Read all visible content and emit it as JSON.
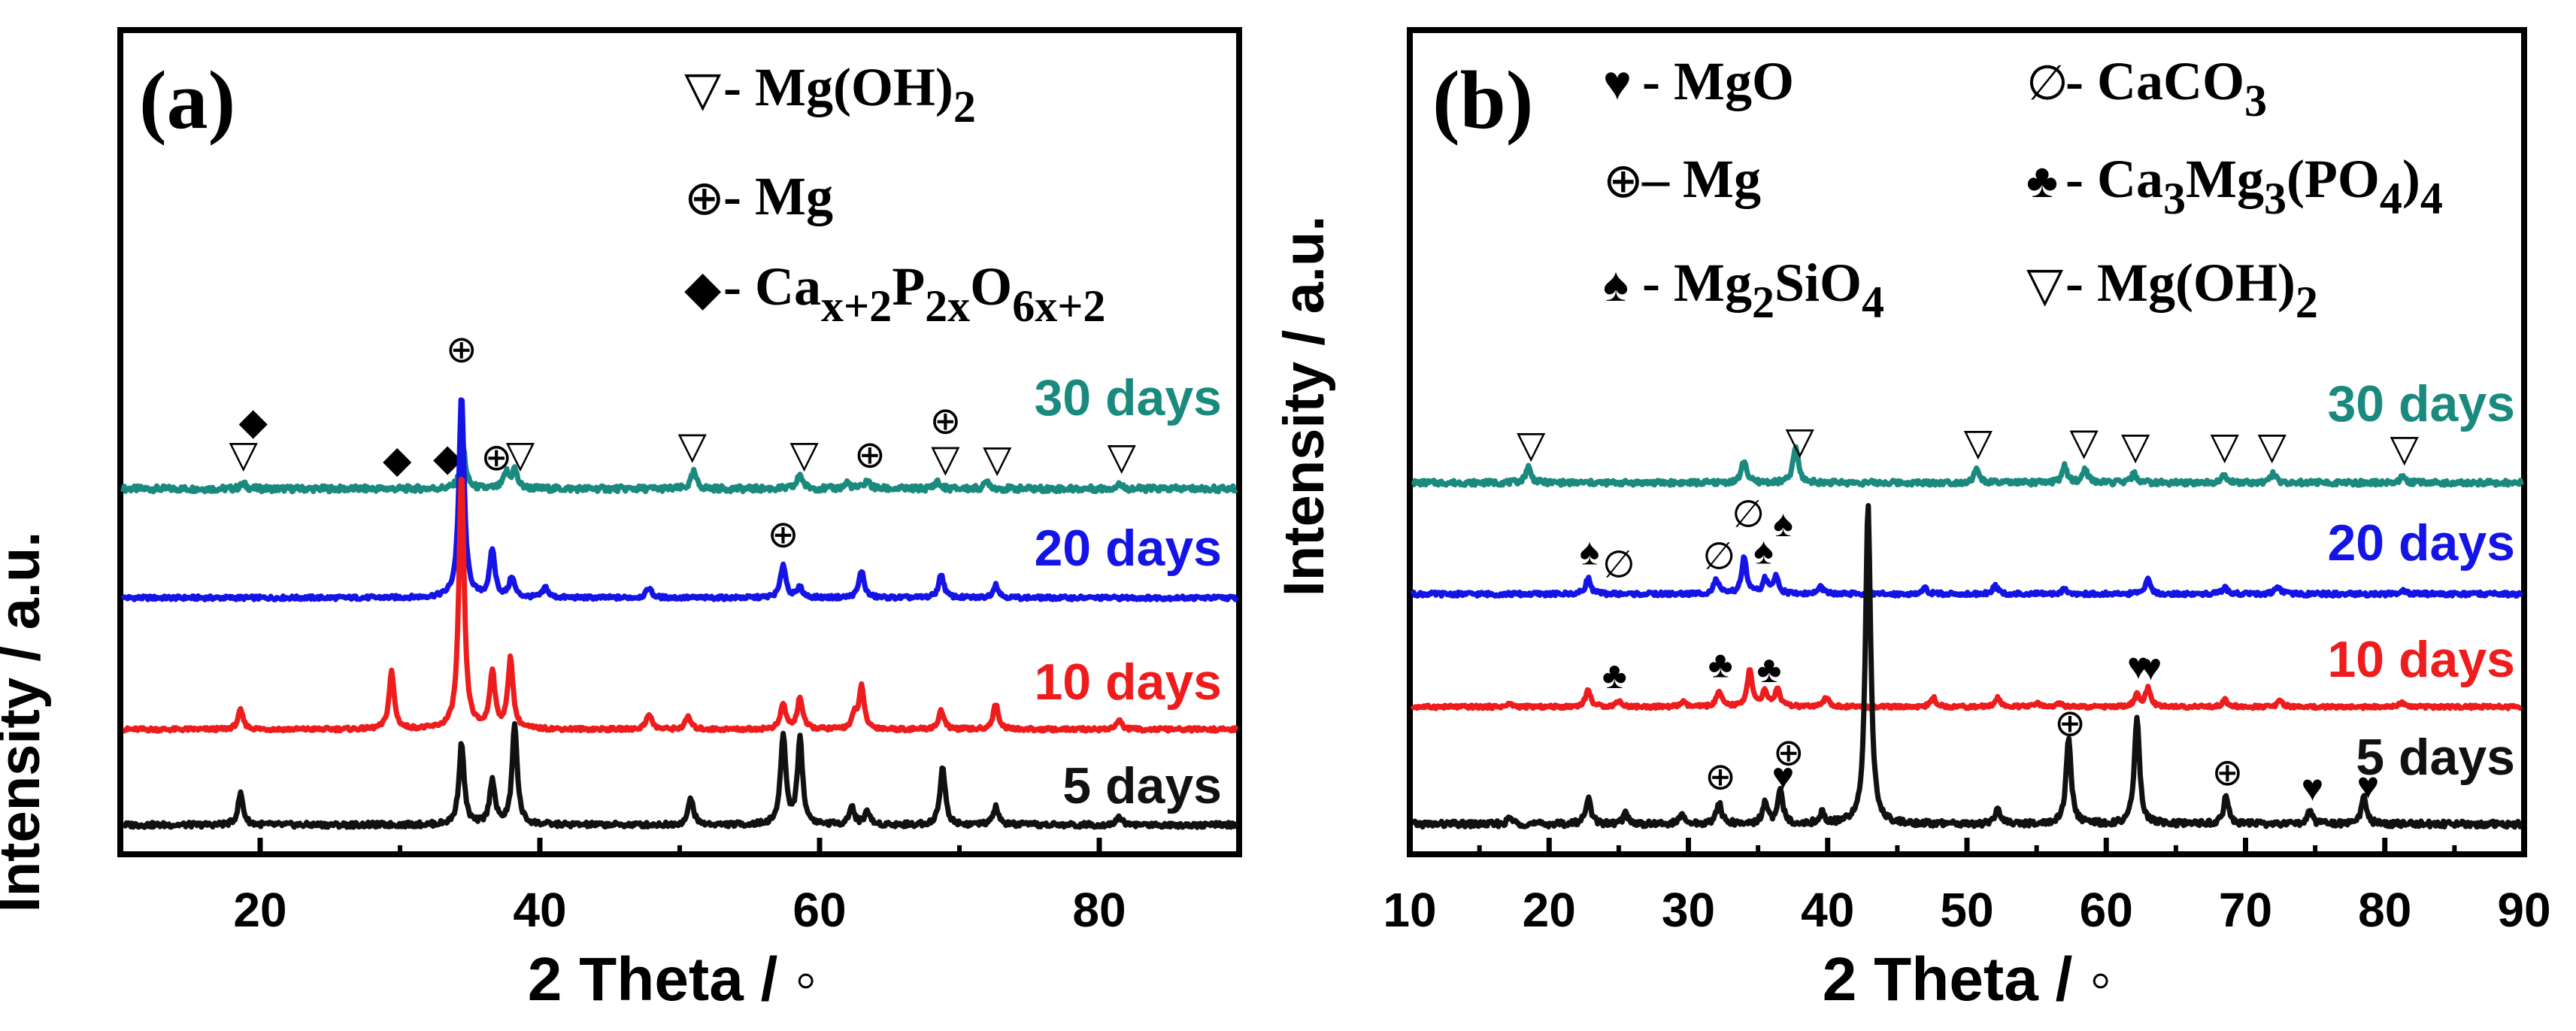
{
  "chart_data": [
    {
      "panel_label": "(a)",
      "type": "line",
      "xlabel": "2 Theta / ◦",
      "ylabel": "Intensity / a.u.",
      "xlim": [
        10,
        90
      ],
      "x_tick_labels": [
        "20",
        "40",
        "60",
        "80"
      ],
      "legend": [
        {
          "symbol": "▽",
          "phase": "Mg(OH)",
          "sub": "2"
        },
        {
          "symbol": "⊕",
          "phase": "Mg",
          "sub": ""
        },
        {
          "symbol": "◆",
          "phase": "Ca",
          "formula": [
            "Ca",
            "x+2",
            "P",
            "2x",
            "O",
            "6x+2"
          ]
        }
      ],
      "series": [
        {
          "name": "30 days",
          "color": "#1a8a7e",
          "peaks": [
            [
              18.8,
              0.5
            ],
            [
              34.5,
              4.0
            ],
            [
              37.6,
              1.5
            ],
            [
              38.2,
              1.8
            ],
            [
              51.0,
              1.6
            ],
            [
              58.6,
              1.4
            ],
            [
              62.0,
              0.6
            ],
            [
              63.4,
              0.8
            ],
            [
              68.4,
              0.7
            ],
            [
              72.0,
              0.7
            ],
            [
              81.4,
              0.5
            ]
          ],
          "markers": [
            {
              "x": 18.8,
              "symbol": "▽"
            },
            {
              "x": 19.5,
              "symbol": "◆",
              "stack": 2
            },
            {
              "x": 29.8,
              "symbol": "◆"
            },
            {
              "x": 33.4,
              "symbol": "◆"
            },
            {
              "x": 34.4,
              "symbol": "⊕",
              "stack": 3
            },
            {
              "x": 36.9,
              "symbol": "⊕"
            },
            {
              "x": 38.6,
              "symbol": "▽"
            },
            {
              "x": 50.9,
              "symbol": "▽"
            },
            {
              "x": 58.9,
              "symbol": "▽"
            },
            {
              "x": 63.6,
              "symbol": "⊕"
            },
            {
              "x": 69.0,
              "symbol": "▽"
            },
            {
              "x": 69.0,
              "symbol": "⊕",
              "stack": 2
            },
            {
              "x": 72.7,
              "symbol": "▽"
            },
            {
              "x": 81.6,
              "symbol": "▽"
            }
          ]
        },
        {
          "name": "20 days",
          "color": "#1414e6",
          "peaks": [
            [
              34.4,
              30.0
            ],
            [
              36.6,
              7.0
            ],
            [
              38.0,
              3.0
            ],
            [
              40.4,
              1.5
            ],
            [
              47.8,
              1.5
            ],
            [
              57.4,
              5.0
            ],
            [
              58.6,
              1.5
            ],
            [
              63.0,
              4.0
            ],
            [
              68.7,
              3.5
            ],
            [
              72.6,
              2.0
            ]
          ],
          "markers": [
            {
              "x": 57.4,
              "symbol": "⊕"
            }
          ]
        },
        {
          "name": "10 days",
          "color": "#ee1c1c",
          "peaks": [
            [
              18.6,
              3.0
            ],
            [
              29.4,
              9.0
            ],
            [
              34.4,
              40.0
            ],
            [
              36.6,
              9.0
            ],
            [
              37.9,
              11.0
            ],
            [
              47.8,
              2.5
            ],
            [
              50.6,
              2.0
            ],
            [
              57.4,
              4.0
            ],
            [
              58.6,
              5.0
            ],
            [
              62.5,
              2.0
            ],
            [
              63.0,
              6.5
            ],
            [
              68.7,
              3.0
            ],
            [
              72.6,
              4.0
            ],
            [
              81.4,
              1.5
            ]
          ],
          "markers": []
        },
        {
          "name": "5 days",
          "color": "#111111",
          "peaks": [
            [
              18.6,
              3.5
            ],
            [
              34.4,
              9.0
            ],
            [
              36.6,
              5.0
            ],
            [
              38.2,
              11.0
            ],
            [
              50.8,
              3.0
            ],
            [
              57.4,
              10.0
            ],
            [
              58.6,
              9.5
            ],
            [
              62.3,
              2.0
            ],
            [
              63.4,
              1.5
            ],
            [
              68.8,
              6.5
            ],
            [
              72.6,
              2.0
            ],
            [
              81.4,
              1.0
            ]
          ],
          "markers": []
        }
      ]
    },
    {
      "panel_label": "(b)",
      "type": "line",
      "xlabel": "2 Theta / ◦",
      "ylabel": "Intensity / a.u.",
      "xlim": [
        10,
        90
      ],
      "x_tick_labels": [
        "10",
        "20",
        "30",
        "40",
        "50",
        "60",
        "70",
        "80",
        "90"
      ],
      "legend": [
        {
          "symbol": "♥",
          "phase": "MgO",
          "formula": [
            "MgO"
          ]
        },
        {
          "symbol": "∅",
          "phase": "CaCO3",
          "formula": [
            "CaCO",
            "3"
          ]
        },
        {
          "symbol": "⊕",
          "phase": "Mg",
          "formula": [
            "Mg"
          ],
          "dash": "–"
        },
        {
          "symbol": "♣",
          "phase": "Ca3Mg3(PO4)4",
          "formula": [
            "Ca",
            "3",
            "Mg",
            "3",
            "(PO",
            "4",
            ")",
            "4"
          ]
        },
        {
          "symbol": "♠",
          "phase": "Mg2SiO4",
          "formula": [
            "Mg",
            "2",
            "SiO",
            "4"
          ]
        },
        {
          "symbol": "▽",
          "phase": "Mg(OH)2",
          "formula": [
            "Mg(OH)",
            "2"
          ]
        }
      ],
      "series": [
        {
          "name": "30 days",
          "color": "#1a8a7e",
          "peaks": [
            [
              18.5,
              1.8
            ],
            [
              34.0,
              2.5
            ],
            [
              37.7,
              4.0
            ],
            [
              50.7,
              1.5
            ],
            [
              57.0,
              1.8
            ],
            [
              58.5,
              1.5
            ],
            [
              62.0,
              1.0
            ],
            [
              68.4,
              1.0
            ],
            [
              72.0,
              1.0
            ],
            [
              81.3,
              0.7
            ]
          ],
          "markers": [
            {
              "x": 18.7,
              "symbol": "▽"
            },
            {
              "x": 38.0,
              "symbol": "▽"
            },
            {
              "x": 50.8,
              "symbol": "▽"
            },
            {
              "x": 58.4,
              "symbol": "▽"
            },
            {
              "x": 62.1,
              "symbol": "▽"
            },
            {
              "x": 68.5,
              "symbol": "▽"
            },
            {
              "x": 71.9,
              "symbol": "▽"
            },
            {
              "x": 81.4,
              "symbol": "▽"
            }
          ]
        },
        {
          "name": "20 days",
          "color": "#1414e6",
          "peaks": [
            [
              22.8,
              2.2
            ],
            [
              32.0,
              2.0
            ],
            [
              34.0,
              5.0
            ],
            [
              35.5,
              2.0
            ],
            [
              36.3,
              2.5
            ],
            [
              39.5,
              1.0
            ],
            [
              47.0,
              0.8
            ],
            [
              52.0,
              1.2
            ],
            [
              57.0,
              0.8
            ],
            [
              63.0,
              2.0
            ],
            [
              68.5,
              1.0
            ],
            [
              72.3,
              1.0
            ],
            [
              81.4,
              0.5
            ]
          ],
          "markers": [
            {
              "x": 22.9,
              "symbol": "♠"
            },
            {
              "x": 25.0,
              "symbol": "∅"
            },
            {
              "x": 32.2,
              "symbol": "∅"
            },
            {
              "x": 34.3,
              "symbol": "∅",
              "stack": 2
            },
            {
              "x": 35.4,
              "symbol": "♠"
            },
            {
              "x": 36.8,
              "symbol": "♠",
              "stack": 2
            }
          ]
        },
        {
          "name": "10 days",
          "color": "#ee1c1c",
          "peaks": [
            [
              17.2,
              0.5
            ],
            [
              22.8,
              2.8
            ],
            [
              25.0,
              1.0
            ],
            [
              29.6,
              0.8
            ],
            [
              32.2,
              2.5
            ],
            [
              34.4,
              6.0
            ],
            [
              35.5,
              2.5
            ],
            [
              36.4,
              3.0
            ],
            [
              39.9,
              1.5
            ],
            [
              47.6,
              1.5
            ],
            [
              52.2,
              1.5
            ],
            [
              55.0,
              0.6
            ],
            [
              56.6,
              0.6
            ],
            [
              62.2,
              2.0
            ],
            [
              63.0,
              3.0
            ],
            [
              68.5,
              1.2
            ],
            [
              72.5,
              1.0
            ],
            [
              81.2,
              0.6
            ]
          ],
          "markers": [
            {
              "x": 24.7,
              "symbol": "♣"
            },
            {
              "x": 32.3,
              "symbol": "♣"
            },
            {
              "x": 35.8,
              "symbol": "♣"
            },
            {
              "x": 62.3,
              "symbol": "♥"
            },
            {
              "x": 63.2,
              "symbol": "♥"
            }
          ]
        },
        {
          "name": "5 days",
          "color": "#111111",
          "peaks": [
            [
              17.2,
              0.6
            ],
            [
              22.8,
              2.5
            ],
            [
              25.5,
              1.0
            ],
            [
              29.5,
              0.8
            ],
            [
              32.2,
              2.0
            ],
            [
              35.5,
              2.0
            ],
            [
              36.6,
              3.0
            ],
            [
              39.6,
              1.0
            ],
            [
              42.9,
              30.0
            ],
            [
              52.2,
              1.5
            ],
            [
              57.3,
              8.0
            ],
            [
              62.2,
              10.0
            ],
            [
              68.6,
              2.5
            ],
            [
              74.6,
              1.2
            ],
            [
              78.5,
              2.5
            ]
          ],
          "markers": [
            {
              "x": 32.3,
              "symbol": "⊕"
            },
            {
              "x": 36.8,
              "symbol": "♥"
            },
            {
              "x": 37.2,
              "symbol": "⊕",
              "stack": 2
            },
            {
              "x": 57.4,
              "symbol": "⊕"
            },
            {
              "x": 68.7,
              "symbol": "⊕"
            },
            {
              "x": 74.8,
              "symbol": "♥"
            },
            {
              "x": 78.8,
              "symbol": "♥"
            }
          ]
        }
      ]
    }
  ]
}
